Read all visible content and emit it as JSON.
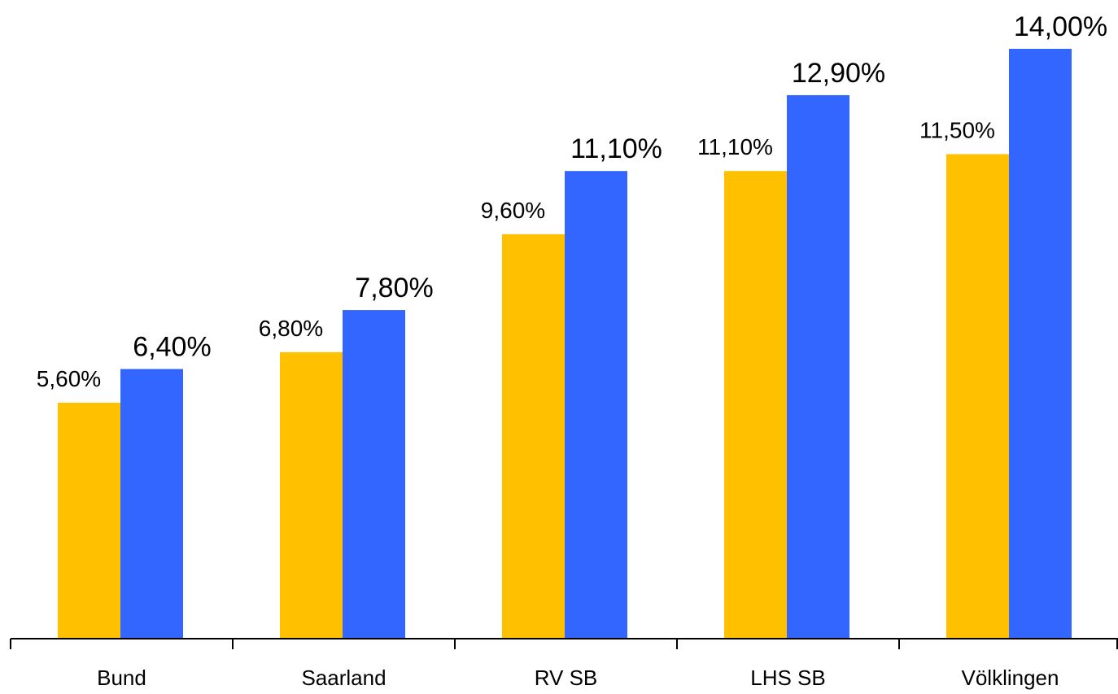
{
  "chart_data": {
    "type": "bar",
    "categories": [
      "Bund",
      "Saarland",
      "RV SB",
      "LHS SB",
      "Völklingen"
    ],
    "series": [
      {
        "color": "#FFC000",
        "values": [
          5.6,
          6.8,
          9.6,
          11.1,
          11.5
        ],
        "labels": [
          "5,60%",
          "6,80%",
          "9,60%",
          "11,10%",
          "11,50%"
        ]
      },
      {
        "color": "#3366FF",
        "values": [
          6.4,
          7.8,
          11.1,
          12.9,
          14.0
        ],
        "labels": [
          "6,40%",
          "7,80%",
          "11,10%",
          "12,90%",
          "14,00%"
        ]
      }
    ],
    "title": "",
    "xlabel": "",
    "ylabel": "",
    "ylim": [
      0,
      14
    ],
    "unit": "%",
    "grid": false,
    "legend": "none"
  }
}
